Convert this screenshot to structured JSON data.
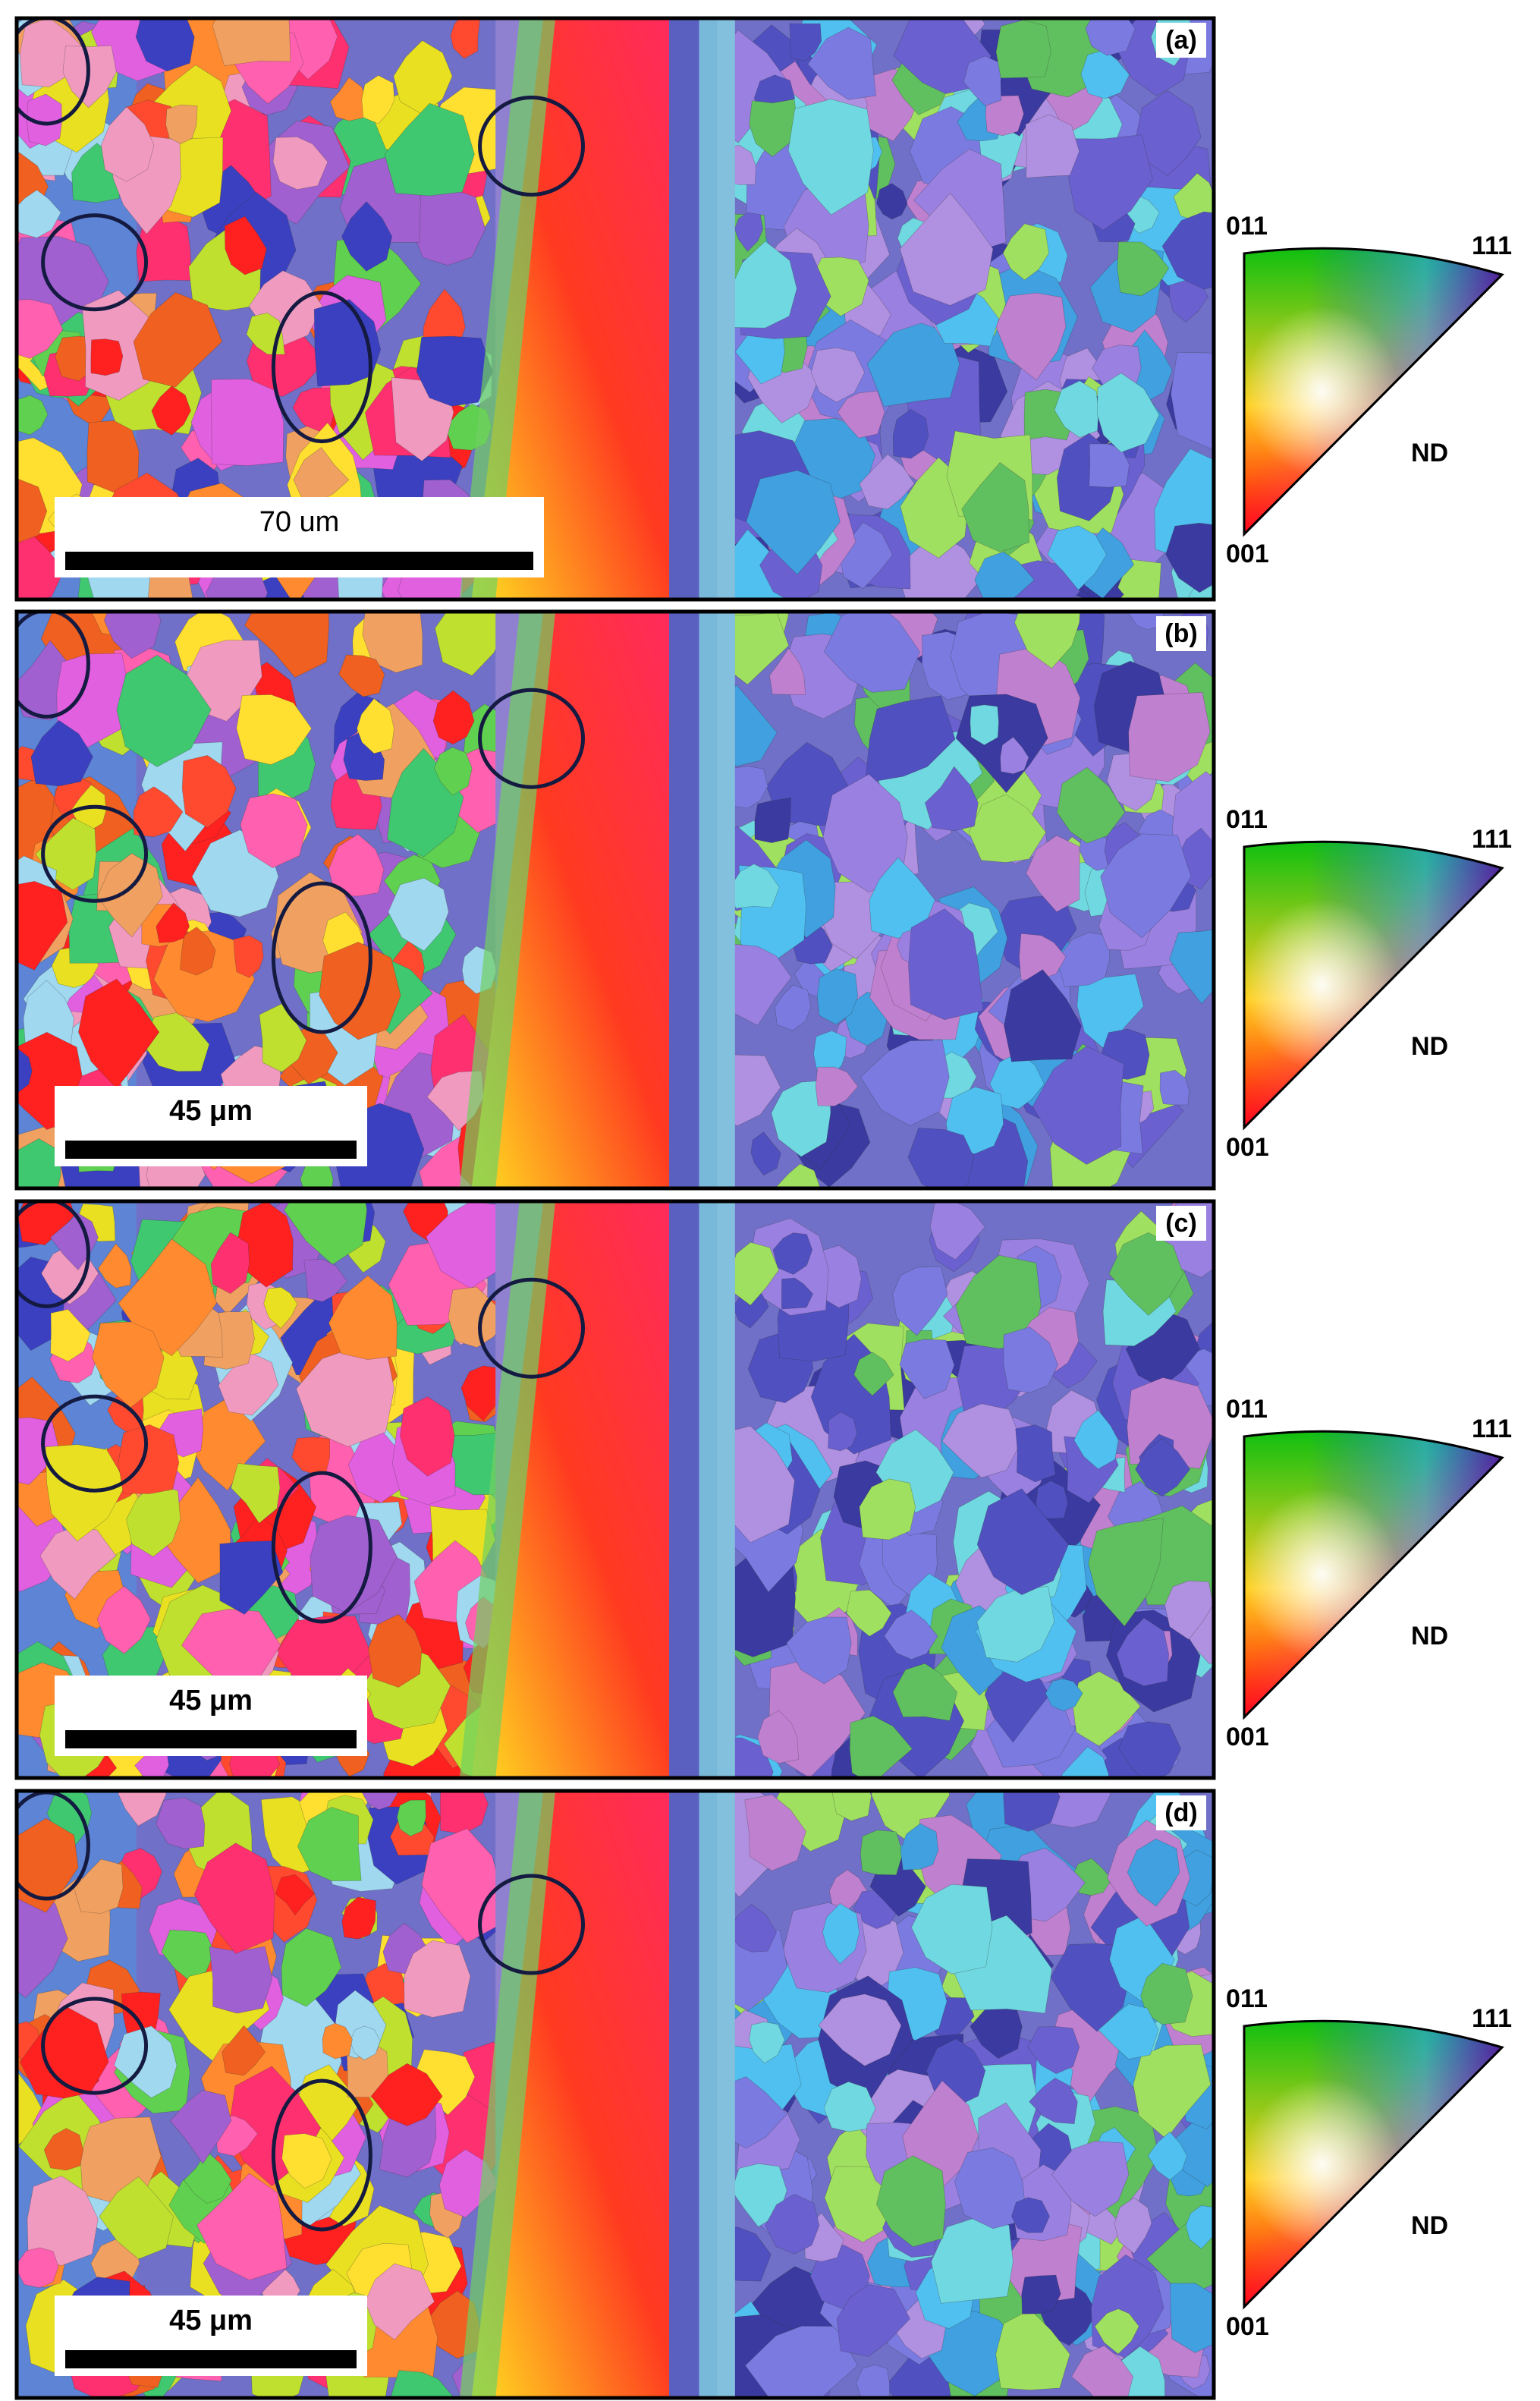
{
  "panels": [
    {
      "label": "(a)",
      "scale_bar": "70 um",
      "legend": {
        "top_left": "011",
        "top_right": "111",
        "bottom": "001",
        "axis": "ND"
      }
    },
    {
      "label": "(b)",
      "scale_bar": "45 μm",
      "legend": {
        "top_left": "011",
        "top_right": "111",
        "bottom": "001",
        "axis": "ND"
      }
    },
    {
      "label": "(c)",
      "scale_bar": "45 μm",
      "legend": {
        "top_left": "011",
        "top_right": "111",
        "bottom": "001",
        "axis": "ND"
      }
    },
    {
      "label": "(d)",
      "scale_bar": "45 μm",
      "legend": {
        "top_left": "011",
        "top_right": "111",
        "bottom": "001",
        "axis": "ND"
      }
    }
  ]
}
